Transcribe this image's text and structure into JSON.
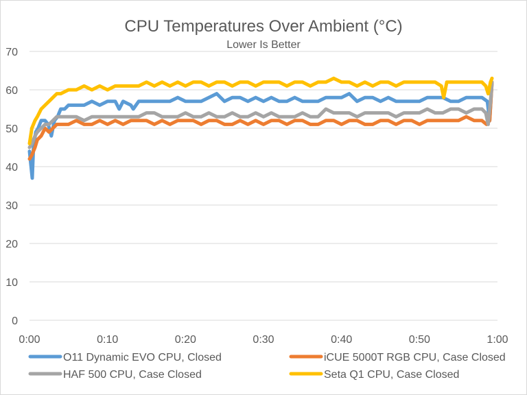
{
  "chart_data": {
    "type": "line",
    "title": "CPU Temperatures Over Ambient (°C)",
    "subtitle": "Lower Is Better",
    "xlabel": "",
    "ylabel": "",
    "xlim": [
      0,
      60
    ],
    "ylim": [
      0,
      70
    ],
    "y_ticks": [
      0,
      10,
      20,
      30,
      40,
      50,
      60,
      70
    ],
    "x_ticks": [
      {
        "value": 0,
        "label": "0:00"
      },
      {
        "value": 10,
        "label": "0:10"
      },
      {
        "value": 20,
        "label": "0:20"
      },
      {
        "value": 30,
        "label": "0:30"
      },
      {
        "value": 40,
        "label": "0:40"
      },
      {
        "value": 50,
        "label": "0:50"
      },
      {
        "value": 60,
        "label": "1:00"
      }
    ],
    "grid": "horizontal",
    "legend_position": "bottom",
    "x_unit": "minutes",
    "series": [
      {
        "name": "O11 Dynamic EVO CPU, Closed",
        "color": "#5b9bd5",
        "points": [
          [
            0,
            44
          ],
          [
            0.2,
            40
          ],
          [
            0.35,
            37
          ],
          [
            0.5,
            45
          ],
          [
            0.8,
            49
          ],
          [
            1.1,
            50
          ],
          [
            1.5,
            52
          ],
          [
            2,
            52
          ],
          [
            2.4,
            51
          ],
          [
            2.8,
            48
          ],
          [
            3.2,
            52
          ],
          [
            3.6,
            53
          ],
          [
            4,
            55
          ],
          [
            4.5,
            55
          ],
          [
            5,
            56
          ],
          [
            5.5,
            56
          ],
          [
            6,
            56
          ],
          [
            7,
            56
          ],
          [
            8,
            57
          ],
          [
            9,
            56
          ],
          [
            10,
            57
          ],
          [
            11,
            57
          ],
          [
            11.5,
            55
          ],
          [
            12,
            57
          ],
          [
            13,
            56
          ],
          [
            13.3,
            55
          ],
          [
            14,
            57
          ],
          [
            15,
            57
          ],
          [
            16,
            57
          ],
          [
            17,
            57
          ],
          [
            18,
            57
          ],
          [
            19,
            58
          ],
          [
            20,
            57
          ],
          [
            21,
            57
          ],
          [
            22,
            57
          ],
          [
            23,
            58
          ],
          [
            24,
            59
          ],
          [
            25,
            57
          ],
          [
            26,
            58
          ],
          [
            27,
            58
          ],
          [
            28,
            57
          ],
          [
            29,
            58
          ],
          [
            30,
            57
          ],
          [
            31,
            58
          ],
          [
            32,
            57
          ],
          [
            33,
            57
          ],
          [
            34,
            58
          ],
          [
            35,
            57
          ],
          [
            36,
            57
          ],
          [
            37,
            57
          ],
          [
            38,
            58
          ],
          [
            39,
            58
          ],
          [
            40,
            58
          ],
          [
            41,
            59
          ],
          [
            42,
            57
          ],
          [
            43,
            58
          ],
          [
            44,
            58
          ],
          [
            45,
            57
          ],
          [
            46,
            58
          ],
          [
            47,
            57
          ],
          [
            48,
            57
          ],
          [
            49,
            57
          ],
          [
            50,
            57
          ],
          [
            51,
            58
          ],
          [
            52,
            58
          ],
          [
            53,
            58
          ],
          [
            54,
            57
          ],
          [
            55,
            57
          ],
          [
            56,
            58
          ],
          [
            57,
            58
          ],
          [
            58,
            58
          ],
          [
            58.7,
            57
          ],
          [
            59,
            52
          ],
          [
            59.3,
            62
          ]
        ]
      },
      {
        "name": "iCUE 5000T RGB CPU, Case Closed",
        "color": "#ed7d31",
        "points": [
          [
            0,
            42
          ],
          [
            0.3,
            43
          ],
          [
            0.7,
            45
          ],
          [
            1,
            47
          ],
          [
            1.5,
            48
          ],
          [
            2,
            50
          ],
          [
            2.5,
            49
          ],
          [
            3,
            50
          ],
          [
            3.5,
            51
          ],
          [
            4,
            51
          ],
          [
            5,
            51
          ],
          [
            6,
            52
          ],
          [
            7,
            51
          ],
          [
            8,
            51
          ],
          [
            9,
            52
          ],
          [
            10,
            51
          ],
          [
            11,
            52
          ],
          [
            12,
            51
          ],
          [
            13,
            52
          ],
          [
            14,
            52
          ],
          [
            15,
            52
          ],
          [
            16,
            51
          ],
          [
            17,
            52
          ],
          [
            18,
            51
          ],
          [
            19,
            52
          ],
          [
            20,
            52
          ],
          [
            21,
            52
          ],
          [
            22,
            51
          ],
          [
            23,
            52
          ],
          [
            24,
            52
          ],
          [
            25,
            51
          ],
          [
            26,
            51
          ],
          [
            27,
            52
          ],
          [
            28,
            51
          ],
          [
            29,
            52
          ],
          [
            30,
            51
          ],
          [
            31,
            52
          ],
          [
            32,
            52
          ],
          [
            33,
            51
          ],
          [
            34,
            52
          ],
          [
            35,
            52
          ],
          [
            36,
            51
          ],
          [
            37,
            51
          ],
          [
            38,
            52
          ],
          [
            39,
            52
          ],
          [
            40,
            51
          ],
          [
            41,
            52
          ],
          [
            42,
            52
          ],
          [
            43,
            51
          ],
          [
            44,
            51
          ],
          [
            45,
            52
          ],
          [
            46,
            52
          ],
          [
            47,
            51
          ],
          [
            48,
            52
          ],
          [
            49,
            52
          ],
          [
            50,
            51
          ],
          [
            51,
            52
          ],
          [
            52,
            52
          ],
          [
            53,
            52
          ],
          [
            54,
            52
          ],
          [
            55,
            52
          ],
          [
            56,
            53
          ],
          [
            57,
            52
          ],
          [
            58,
            52
          ],
          [
            58.6,
            51
          ],
          [
            59,
            52
          ],
          [
            59.3,
            62
          ]
        ]
      },
      {
        "name": "HAF 500 CPU, Case Closed",
        "color": "#a5a5a5",
        "points": [
          [
            0,
            45
          ],
          [
            0.3,
            46
          ],
          [
            0.7,
            48
          ],
          [
            1,
            49
          ],
          [
            1.5,
            50
          ],
          [
            2,
            51
          ],
          [
            2.5,
            51
          ],
          [
            3,
            52
          ],
          [
            3.5,
            53
          ],
          [
            4,
            53
          ],
          [
            5,
            53
          ],
          [
            6,
            53
          ],
          [
            7,
            52
          ],
          [
            8,
            53
          ],
          [
            9,
            53
          ],
          [
            10,
            53
          ],
          [
            11,
            53
          ],
          [
            12,
            53
          ],
          [
            13,
            53
          ],
          [
            14,
            53
          ],
          [
            15,
            54
          ],
          [
            16,
            54
          ],
          [
            17,
            53
          ],
          [
            18,
            53
          ],
          [
            19,
            53
          ],
          [
            20,
            54
          ],
          [
            21,
            53
          ],
          [
            22,
            53
          ],
          [
            23,
            54
          ],
          [
            24,
            53
          ],
          [
            25,
            53
          ],
          [
            26,
            54
          ],
          [
            27,
            53
          ],
          [
            28,
            53
          ],
          [
            29,
            54
          ],
          [
            30,
            53
          ],
          [
            31,
            54
          ],
          [
            32,
            53
          ],
          [
            33,
            53
          ],
          [
            34,
            53
          ],
          [
            35,
            54
          ],
          [
            36,
            53
          ],
          [
            37,
            53
          ],
          [
            38,
            55
          ],
          [
            39,
            54
          ],
          [
            40,
            54
          ],
          [
            41,
            54
          ],
          [
            42,
            53
          ],
          [
            43,
            54
          ],
          [
            44,
            54
          ],
          [
            45,
            54
          ],
          [
            46,
            54
          ],
          [
            47,
            53
          ],
          [
            48,
            54
          ],
          [
            49,
            54
          ],
          [
            50,
            54
          ],
          [
            51,
            55
          ],
          [
            52,
            54
          ],
          [
            53,
            54
          ],
          [
            54,
            55
          ],
          [
            55,
            55
          ],
          [
            56,
            54
          ],
          [
            57,
            55
          ],
          [
            58,
            55
          ],
          [
            58.5,
            54
          ],
          [
            58.8,
            51
          ],
          [
            59.1,
            57
          ],
          [
            59.3,
            62
          ]
        ]
      },
      {
        "name": "Seta Q1 CPU, Case Closed",
        "color": "#ffc000",
        "points": [
          [
            0,
            46
          ],
          [
            0.3,
            50
          ],
          [
            0.7,
            52
          ],
          [
            1,
            53
          ],
          [
            1.5,
            55
          ],
          [
            2,
            56
          ],
          [
            2.5,
            57
          ],
          [
            3,
            58
          ],
          [
            3.5,
            59
          ],
          [
            4,
            59
          ],
          [
            5,
            60
          ],
          [
            6,
            60
          ],
          [
            7,
            61
          ],
          [
            8,
            60
          ],
          [
            9,
            61
          ],
          [
            10,
            60
          ],
          [
            11,
            61
          ],
          [
            12,
            61
          ],
          [
            13,
            61
          ],
          [
            14,
            61
          ],
          [
            15,
            62
          ],
          [
            16,
            61
          ],
          [
            17,
            62
          ],
          [
            18,
            61
          ],
          [
            19,
            62
          ],
          [
            20,
            61
          ],
          [
            21,
            62
          ],
          [
            22,
            62
          ],
          [
            23,
            61
          ],
          [
            24,
            62
          ],
          [
            25,
            62
          ],
          [
            26,
            61
          ],
          [
            27,
            62
          ],
          [
            28,
            62
          ],
          [
            29,
            61
          ],
          [
            30,
            62
          ],
          [
            31,
            62
          ],
          [
            32,
            62
          ],
          [
            33,
            61
          ],
          [
            34,
            62
          ],
          [
            35,
            62
          ],
          [
            36,
            61
          ],
          [
            37,
            62
          ],
          [
            38,
            62
          ],
          [
            39,
            63
          ],
          [
            40,
            62
          ],
          [
            41,
            62
          ],
          [
            42,
            61
          ],
          [
            43,
            62
          ],
          [
            44,
            61
          ],
          [
            45,
            62
          ],
          [
            46,
            62
          ],
          [
            47,
            61
          ],
          [
            48,
            62
          ],
          [
            49,
            62
          ],
          [
            50,
            62
          ],
          [
            51,
            62
          ],
          [
            52,
            62
          ],
          [
            52.8,
            61
          ],
          [
            53.1,
            58
          ],
          [
            53.5,
            62
          ],
          [
            54,
            62
          ],
          [
            55,
            62
          ],
          [
            56,
            62
          ],
          [
            57,
            62
          ],
          [
            58,
            62
          ],
          [
            58.5,
            61
          ],
          [
            58.8,
            59
          ],
          [
            59.1,
            62
          ],
          [
            59.3,
            63
          ]
        ]
      }
    ]
  }
}
